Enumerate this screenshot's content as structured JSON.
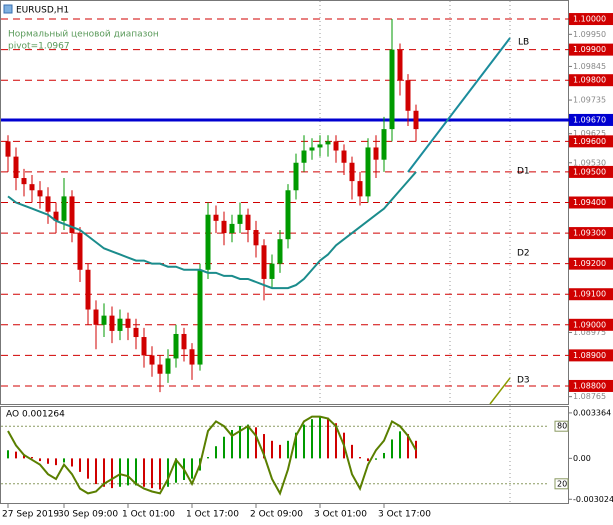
{
  "chart_data": [
    {
      "type": "candlestick",
      "title": "EURUSD,H1",
      "annotations": [
        "Нормальный ценовой диапазон",
        "pivot=1.0967"
      ],
      "labels": [
        "LB",
        "D1",
        "D2",
        "D3"
      ],
      "categories": [
        "27 Sep 2019",
        null,
        null,
        null,
        null,
        null,
        null,
        "30 Sep 09:00",
        null,
        null,
        null,
        null,
        null,
        null,
        null,
        "1 Oct 01:00",
        null,
        null,
        null,
        null,
        null,
        null,
        null,
        "1 Oct 17:00",
        null,
        null,
        null,
        null,
        null,
        null,
        null,
        "2 Oct 09:00",
        null,
        null,
        null,
        null,
        null,
        null,
        null,
        "3 Oct 01:00",
        null,
        null,
        null,
        null,
        null,
        null,
        null,
        "3 Oct 17:00",
        null,
        null,
        null,
        null
      ],
      "open": [
        1.096,
        1.0955,
        1.0948,
        1.0946,
        1.0944,
        1.0942,
        1.0937,
        1.0934,
        1.0942,
        1.093,
        1.0918,
        1.0905,
        1.09,
        1.0903,
        1.0898,
        1.0902,
        1.0899,
        1.0896,
        1.089,
        1.0887,
        1.0884,
        1.0889,
        1.0897,
        1.0892,
        1.0887,
        1.0918,
        1.0936,
        1.0934,
        1.093,
        1.0933,
        1.0936,
        1.0931,
        1.0926,
        1.0915,
        1.092,
        1.0928,
        1.0944,
        1.0953,
        1.0957,
        1.0958,
        1.0959,
        1.096,
        1.0957,
        1.0953,
        1.0947,
        1.0942,
        1.0958,
        1.0954,
        1.0964,
        1.099,
        1.098,
        1.097
      ],
      "high": [
        1.0962,
        1.0958,
        1.0951,
        1.0949,
        1.0947,
        1.0945,
        1.094,
        1.0948,
        1.0944,
        1.0932,
        1.092,
        1.0908,
        1.0907,
        1.0906,
        1.0905,
        1.0904,
        1.0902,
        1.0899,
        1.0893,
        1.089,
        1.0892,
        1.09,
        1.0899,
        1.0894,
        1.092,
        1.094,
        1.0939,
        1.0937,
        1.0936,
        1.094,
        1.0938,
        1.0934,
        1.0928,
        1.0923,
        1.0931,
        1.0946,
        1.0956,
        1.0962,
        1.0961,
        1.0962,
        1.0962,
        1.0962,
        1.0959,
        1.0955,
        1.095,
        1.0961,
        1.0962,
        1.0968,
        1.1,
        1.0992,
        1.0982,
        1.0972
      ],
      "low": [
        1.095,
        1.0944,
        1.0942,
        1.094,
        1.0938,
        1.0933,
        1.093,
        1.0931,
        1.0927,
        1.0914,
        1.09,
        1.0892,
        1.0896,
        1.0894,
        1.0895,
        1.0895,
        1.0892,
        1.0886,
        1.0883,
        1.0878,
        1.0881,
        1.0886,
        1.0888,
        1.0882,
        1.0885,
        1.0915,
        1.093,
        1.0926,
        1.0927,
        1.093,
        1.0927,
        1.0922,
        1.0908,
        1.0912,
        1.0917,
        1.0925,
        1.0941,
        1.095,
        1.0954,
        1.0955,
        1.0955,
        1.0953,
        1.0949,
        1.0941,
        1.0939,
        1.094,
        1.0948,
        1.095,
        1.096,
        1.0975,
        1.0965,
        1.096
      ],
      "close": [
        1.0955,
        1.0948,
        1.0946,
        1.0944,
        1.0942,
        1.0937,
        1.0934,
        1.0942,
        1.093,
        1.0918,
        1.0905,
        1.09,
        1.0903,
        1.0898,
        1.0902,
        1.0899,
        1.0896,
        1.089,
        1.0887,
        1.0884,
        1.0889,
        1.0897,
        1.0892,
        1.0887,
        1.0918,
        1.0936,
        1.0934,
        1.093,
        1.0933,
        1.0936,
        1.0931,
        1.0926,
        1.0915,
        1.092,
        1.0928,
        1.0944,
        1.0953,
        1.0957,
        1.0958,
        1.0959,
        1.096,
        1.0957,
        1.0953,
        1.0947,
        1.0942,
        1.0958,
        1.0954,
        1.0964,
        1.099,
        1.098,
        1.097,
        1.0964
      ],
      "up_color": "#009a00",
      "down_color": "#d00000",
      "overlay": {
        "color": "#1b8c8c",
        "values": [
          1.0942,
          1.094,
          1.0939,
          1.0938,
          1.0937,
          1.0936,
          1.0934,
          1.0933,
          1.0932,
          1.0931,
          1.0929,
          1.0927,
          1.0925,
          1.0924,
          1.0923,
          1.0922,
          1.0921,
          1.0921,
          1.092,
          1.092,
          1.0919,
          1.0919,
          1.0918,
          1.0918,
          1.0918,
          1.0917,
          1.0917,
          1.0916,
          1.0916,
          1.0915,
          1.0915,
          1.0914,
          1.0913,
          1.0912,
          1.0912,
          1.0912,
          1.0913,
          1.0915,
          1.0918,
          1.0921,
          1.0923,
          1.0926,
          1.0928,
          1.093,
          1.0932,
          1.0934,
          1.0936,
          1.0938,
          1.0941,
          1.0944,
          1.0947,
          1.095
        ]
      },
      "ylim": [
        1.08741,
        1.10059
      ],
      "level_color": "#d00000",
      "levels": [
        {
          "value": 1.1,
          "label": "1.10000"
        },
        {
          "value": 1.099,
          "label": "1.09900"
        },
        {
          "value": 1.098,
          "label": "1.09800"
        },
        {
          "value": 1.096,
          "label": "1.09600"
        },
        {
          "value": 1.095,
          "label": "1.09500"
        },
        {
          "value": 1.094,
          "label": "1.09400"
        },
        {
          "value": 1.093,
          "label": "1.09300"
        },
        {
          "value": 1.092,
          "label": "1.09200"
        },
        {
          "value": 1.091,
          "label": "1.09100"
        },
        {
          "value": 1.09,
          "label": "1.09000"
        },
        {
          "value": 1.089,
          "label": "1.08900"
        },
        {
          "value": 1.088,
          "label": "1.08800"
        }
      ],
      "pivot_color": "#0000d0",
      "pivot": {
        "value": 1.0967,
        "label": "1.09670"
      },
      "yticks": [
        {
          "value": 1.0995,
          "label": "1.09950"
        },
        {
          "value": 1.09845,
          "label": "1.09845"
        },
        {
          "value": 1.09735,
          "label": "1.09735"
        },
        {
          "value": 1.09625,
          "label": "1.09625"
        },
        {
          "value": 1.0953,
          "label": "1.09530"
        },
        {
          "value": 1.08975,
          "label": "1.08975"
        },
        {
          "value": 1.08765,
          "label": "1.08765"
        }
      ]
    },
    {
      "type": "oscillator",
      "title": "AO 0.001264",
      "up_color": "#009a00",
      "down_color": "#d00000",
      "series": [
        {
          "values": [
            0.0006,
            0.0005,
            0.0003,
            0.0001,
            -0.0002,
            -0.0004,
            -0.0005,
            -0.0003,
            -0.0006,
            -0.001,
            -0.0015,
            -0.0019,
            -0.0021,
            -0.0022,
            -0.0021,
            -0.002,
            -0.002,
            -0.0021,
            -0.0022,
            -0.0023,
            -0.0021,
            -0.0018,
            -0.0016,
            -0.0015,
            -0.0009,
            0.0001,
            0.0009,
            0.0016,
            0.0021,
            0.0024,
            0.0025,
            0.0023,
            0.0018,
            0.0013,
            0.001,
            0.0013,
            0.0019,
            0.0025,
            0.0029,
            0.0031,
            0.003,
            0.0026,
            0.0019,
            0.001,
            0.0001,
            -0.0002,
            -0.0001,
            0.0004,
            0.0014,
            0.002,
            0.0018,
            0.0013
          ]
        },
        {
          "color": "#5a7f00",
          "axis": "y2",
          "values": [
            75,
            60,
            50,
            45,
            40,
            30,
            25,
            40,
            30,
            15,
            10,
            12,
            20,
            25,
            30,
            28,
            20,
            15,
            12,
            10,
            25,
            45,
            35,
            20,
            40,
            75,
            85,
            80,
            70,
            75,
            80,
            70,
            50,
            25,
            10,
            35,
            70,
            85,
            90,
            90,
            88,
            80,
            60,
            30,
            15,
            40,
            55,
            65,
            85,
            80,
            70,
            55
          ]
        }
      ],
      "ylim": [
        -0.0033,
        0.0038
      ],
      "yticks": [
        0.003364,
        {
          "value": 0,
          "label": "0.00"
        },
        -0.003024
      ],
      "y2lim": [
        0,
        100
      ],
      "y2ticks": [
        80,
        20
      ]
    }
  ]
}
